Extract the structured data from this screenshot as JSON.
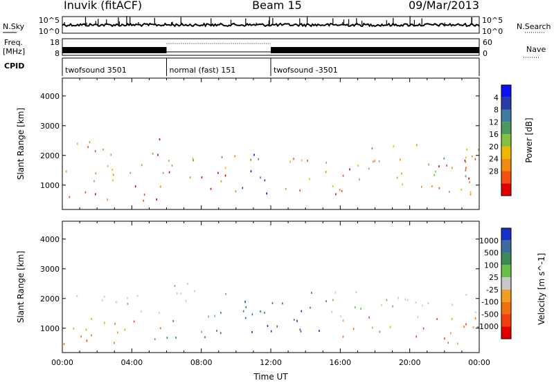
{
  "header": {
    "station": "Inuvik (fitACF)",
    "beam": "Beam 15",
    "date": "09/Mar/2013"
  },
  "summary": {
    "nsky": {
      "label": "N.Sky",
      "tick_top": "10^5",
      "tick_bottom": "10^0"
    },
    "nsearch": {
      "label": "N.Search",
      "tick_top": "10^5",
      "tick_bottom": "10^0"
    },
    "freq": {
      "label_line1": "Freq.",
      "label_line2": "[MHz]",
      "tick_top": "18",
      "tick_bottom": "8"
    },
    "nave": {
      "label": "Nave",
      "tick_top": "60",
      "tick_bottom": "0"
    },
    "cpid": {
      "label": "CPID",
      "segments": [
        {
          "start_hour": 0,
          "end_hour": 6,
          "name": "twofsound 3501"
        },
        {
          "start_hour": 6,
          "end_hour": 12,
          "name": "normal (fast) 151"
        },
        {
          "start_hour": 12,
          "end_hour": 24,
          "name": "twofsound -3501"
        }
      ]
    }
  },
  "chart_data": [
    {
      "type": "heatmap",
      "parameter": "power",
      "ylabel": "Slant Range [km]",
      "xlabel": "",
      "xlim_hours": [
        0,
        24
      ],
      "ylim_km": [
        180,
        4600
      ],
      "yticks": [
        "1000",
        "2000",
        "3000",
        "4000"
      ],
      "colorbar": {
        "label": "Power [dB]",
        "range": [
          0,
          32
        ],
        "ticks": [
          "4",
          "8",
          "12",
          "16",
          "20",
          "24",
          "28"
        ],
        "colors": [
          "#0a12f0",
          "#283ca4",
          "#3f7aa0",
          "#4a9a60",
          "#82c040",
          "#f0b800",
          "#f08a10",
          "#f05010",
          "#e00000"
        ]
      },
      "scatter_regions": [
        {
          "t0": 0.0,
          "t1": 6.0,
          "r0": 500,
          "r1": 1100,
          "level": "high"
        },
        {
          "t0": 0.0,
          "t1": 6.0,
          "r0": 1100,
          "r1": 1800,
          "level": "mid"
        },
        {
          "t0": 0.8,
          "t1": 6.0,
          "r0": 1900,
          "r1": 2600,
          "level": "mid-high"
        },
        {
          "t0": 6.0,
          "t1": 10.2,
          "r0": 700,
          "r1": 1500,
          "level": "high"
        },
        {
          "t0": 6.0,
          "t1": 10.0,
          "r0": 1600,
          "r1": 2300,
          "level": "mid"
        },
        {
          "t0": 10.3,
          "t1": 12.0,
          "r0": 300,
          "r1": 2300,
          "level": "low"
        },
        {
          "t0": 12.0,
          "t1": 17.0,
          "r0": 700,
          "r1": 2000,
          "level": "mid-high"
        },
        {
          "t0": 17.0,
          "t1": 24.0,
          "r0": 700,
          "r1": 2400,
          "level": "mid"
        },
        {
          "t0": 21.0,
          "t1": 24.0,
          "r0": 900,
          "r1": 2100,
          "level": "high"
        }
      ]
    },
    {
      "type": "heatmap",
      "parameter": "velocity",
      "ylabel": "Slant Range [km]",
      "xlabel": "Time UT",
      "xlim_hours": [
        0,
        24
      ],
      "ylim_km": [
        180,
        4600
      ],
      "yticks": [
        "1000",
        "2000",
        "3000",
        "4000"
      ],
      "xticks": [
        "00:00",
        "04:00",
        "08:00",
        "12:00",
        "16:00",
        "20:00",
        "00:00"
      ],
      "colorbar": {
        "label": "Velocity [m s^-1]",
        "range": [
          -1200,
          1200
        ],
        "ticks": [
          "1000",
          "500",
          "100",
          "25",
          "-25",
          "-100",
          "-500",
          "-1000"
        ],
        "colors": [
          "#1830c8",
          "#3f6a9c",
          "#3a8a58",
          "#68c048",
          "#c8c8c8",
          "#f0a020",
          "#f07010",
          "#f04010",
          "#e00000"
        ]
      },
      "scatter_regions": [
        {
          "t0": 0.0,
          "t1": 6.0,
          "r0": 500,
          "r1": 1500,
          "level": "negative"
        },
        {
          "t0": 0.5,
          "t1": 6.0,
          "r0": 1500,
          "r1": 2200,
          "level": "near-zero"
        },
        {
          "t0": 6.0,
          "t1": 10.2,
          "r0": 700,
          "r1": 1700,
          "level": "moderate-positive"
        },
        {
          "t0": 6.0,
          "t1": 10.0,
          "r0": 1900,
          "r1": 2600,
          "level": "near-zero"
        },
        {
          "t0": 10.3,
          "t1": 15.5,
          "r0": 600,
          "r1": 2300,
          "level": "strong-positive"
        },
        {
          "t0": 15.5,
          "t1": 24.0,
          "r0": 500,
          "r1": 1400,
          "level": "negative"
        },
        {
          "t0": 15.0,
          "t1": 24.0,
          "r0": 1400,
          "r1": 2300,
          "level": "near-zero"
        }
      ]
    }
  ]
}
